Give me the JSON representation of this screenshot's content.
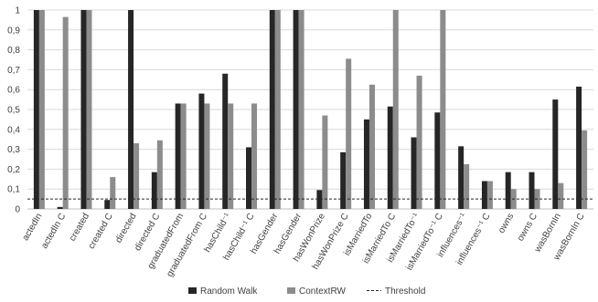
{
  "chart_data": {
    "type": "bar",
    "categories": [
      "actedIn",
      "actedIn C",
      "created",
      "created C",
      "directed",
      "directed C",
      "graduatedFrom",
      "graduatedFrom C",
      "hasChild⁻¹",
      "hasChild⁻¹ C",
      "hasGender",
      "hasGender",
      "hasWonPrize",
      "hasWonPrize C",
      "isMarriedTo",
      "isMarriedTo C",
      "isMarriedTo⁻¹",
      "isMarriedTo⁻¹ C",
      "influences⁻¹",
      "influences⁻¹ C",
      "owns",
      "owns C",
      "wasBornIn",
      "wasBornIn C"
    ],
    "series": [
      {
        "name": "Random Walk",
        "color": "#262626",
        "values": [
          1.0,
          0.01,
          1.0,
          0.045,
          1.0,
          0.185,
          0.53,
          0.58,
          0.68,
          0.31,
          1.0,
          1.0,
          0.095,
          0.285,
          0.45,
          0.515,
          0.36,
          0.485,
          0.315,
          0.14,
          0.185,
          0.185,
          0.55,
          0.615
        ]
      },
      {
        "name": "ContextRW",
        "color": "#8c8c8c",
        "values": [
          1.0,
          0.965,
          1.0,
          0.16,
          0.33,
          0.345,
          0.53,
          0.53,
          0.53,
          0.53,
          1.0,
          1.0,
          0.47,
          0.755,
          0.625,
          1.0,
          0.67,
          1.0,
          0.225,
          0.14,
          0.1,
          0.1,
          0.13,
          0.395
        ]
      }
    ],
    "threshold": {
      "name": "Threshold",
      "value": 0.05,
      "color": "#262626"
    },
    "yticks": [
      "0",
      "0,1",
      "0,2",
      "0,3",
      "0,4",
      "0,5",
      "0,6",
      "0,7",
      "0,8",
      "0,9",
      "1"
    ],
    "ylim": [
      0,
      1
    ],
    "title": "",
    "xlabel": "",
    "ylabel": "",
    "grid": true,
    "legend_position": "bottom"
  }
}
